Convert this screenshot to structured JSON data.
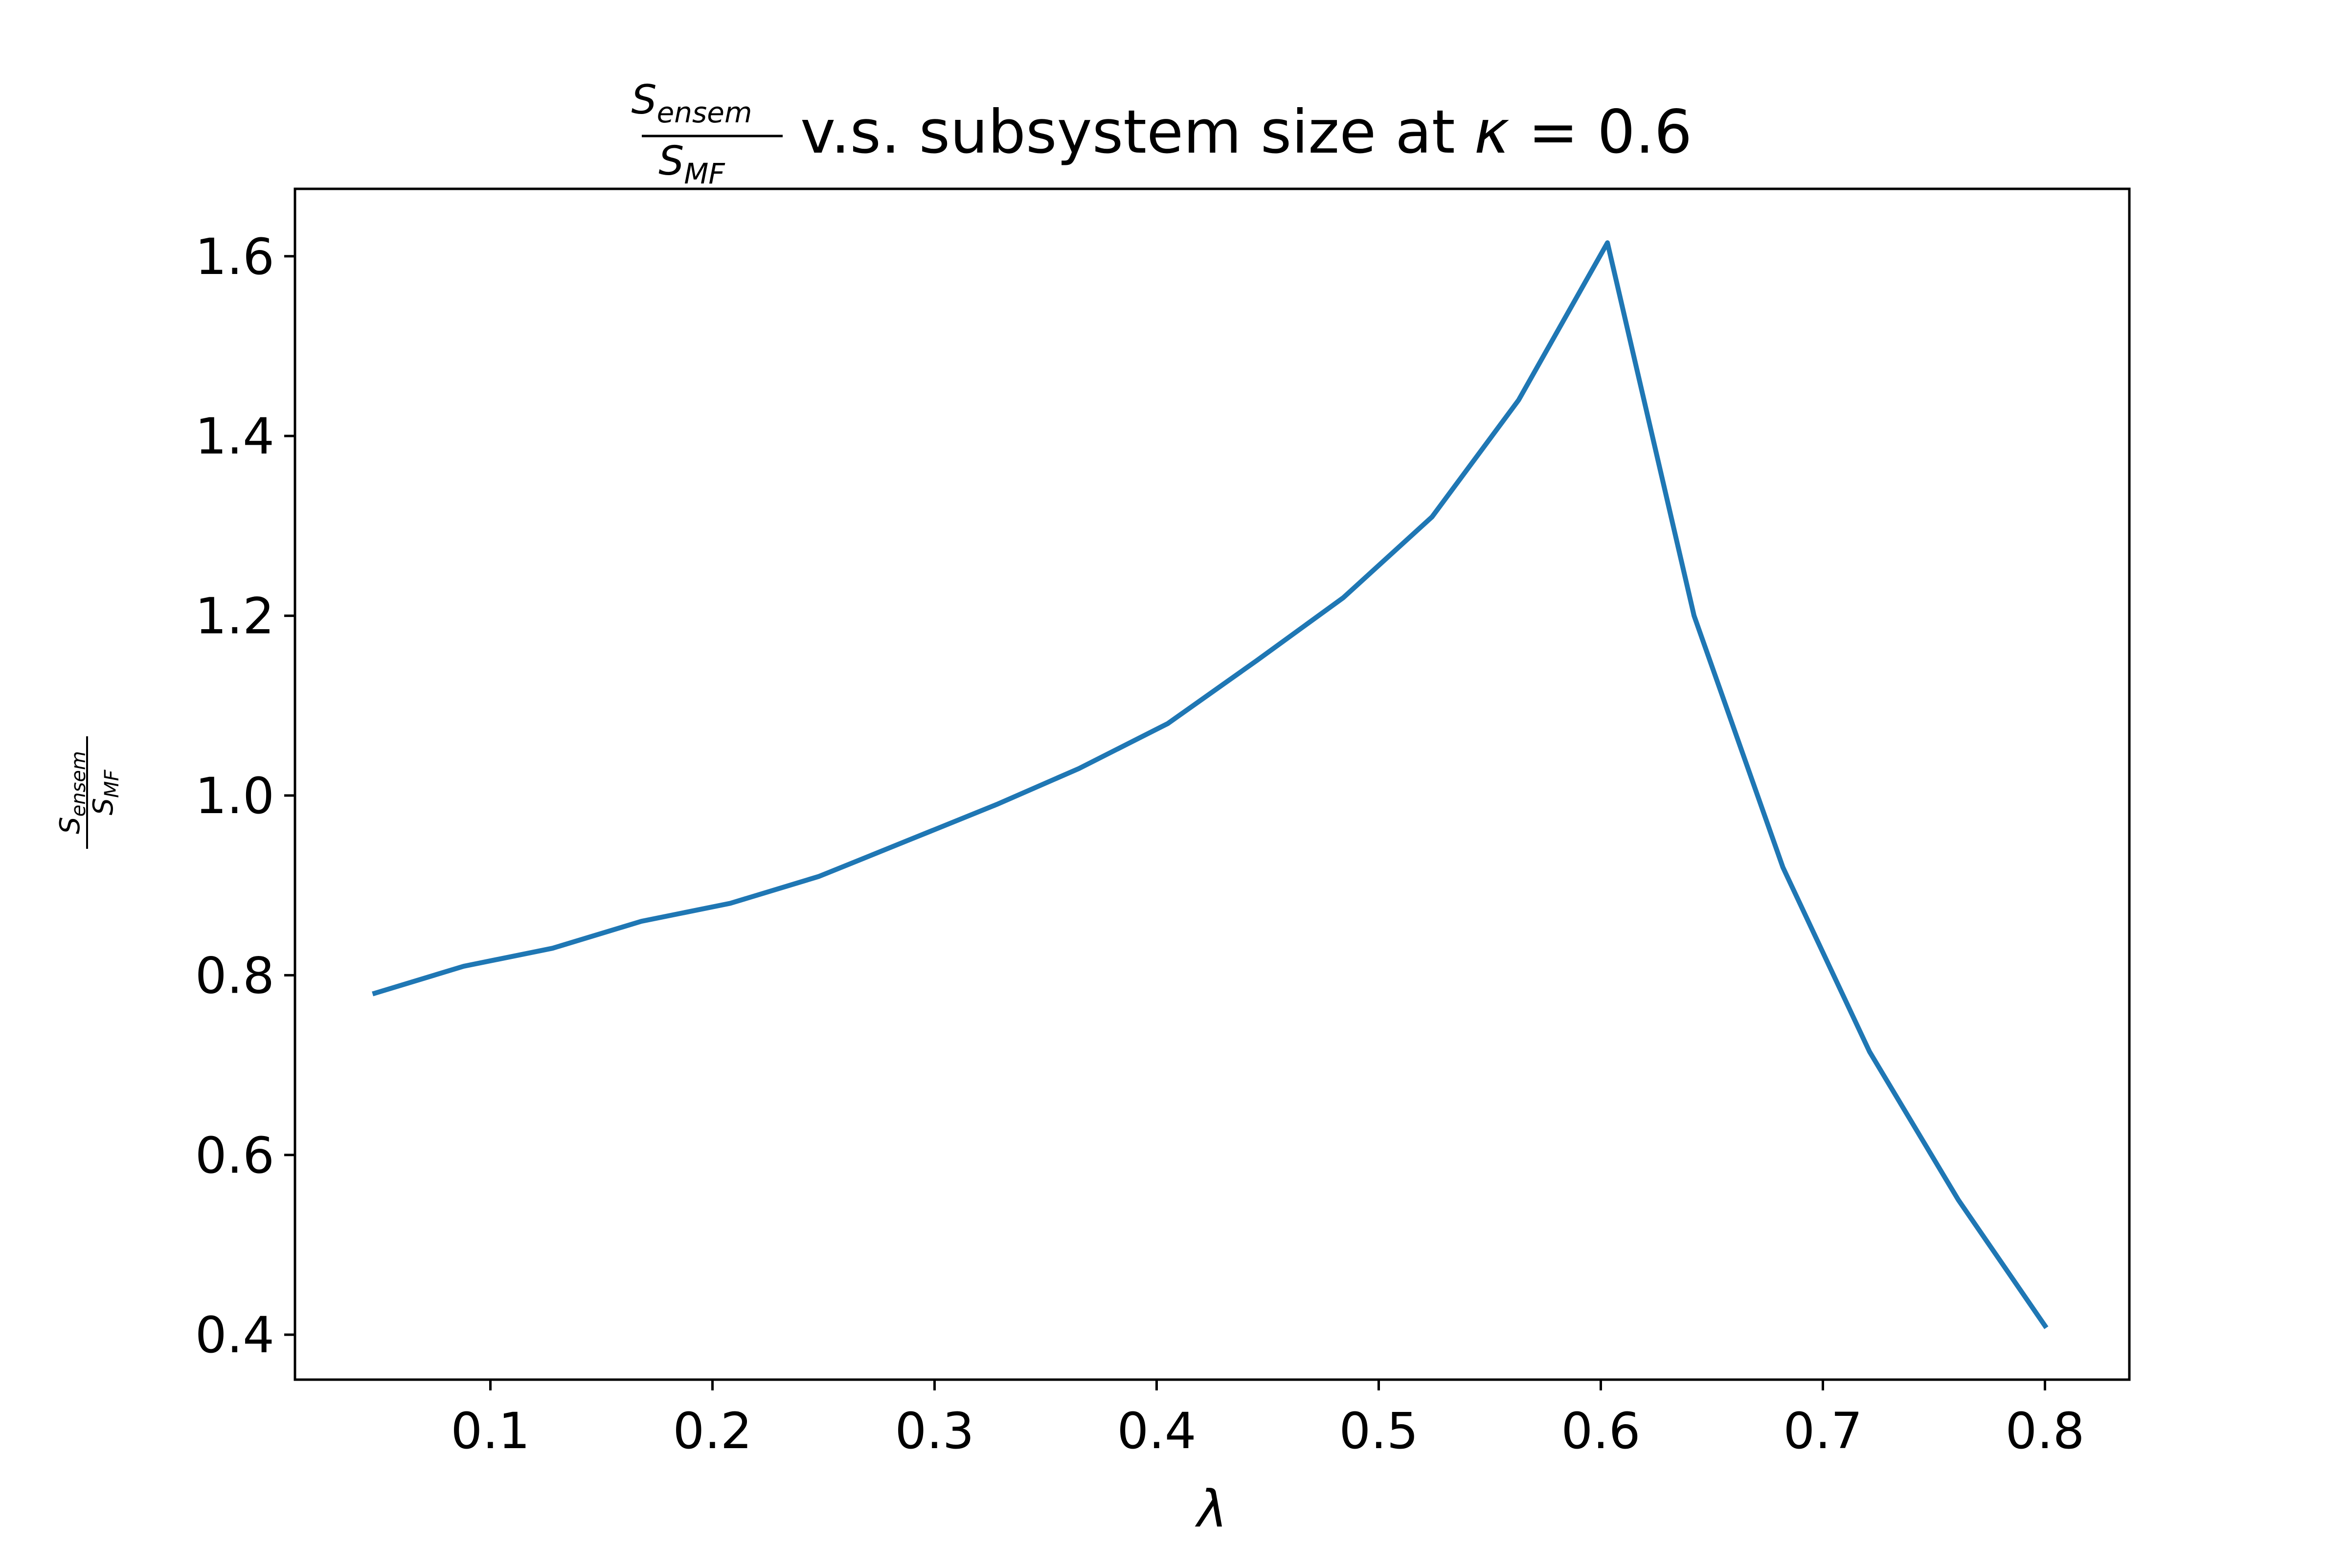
{
  "chart_data": {
    "type": "line",
    "title": {
      "num_base": "S",
      "num_sub": "ensem",
      "den_base": "S",
      "den_sub": "MF",
      "text": " v.s. subsystem size at ",
      "var": "κ",
      "eq": " = 0.6"
    },
    "xlabel": "λ",
    "ylabel": {
      "num_base": "S",
      "num_sub": "ensem",
      "den_base": "S",
      "den_sub": "MF"
    },
    "xlim": [
      0.012,
      0.838
    ],
    "ylim": [
      0.35,
      1.675
    ],
    "xticks": [
      0.1,
      0.2,
      0.3,
      0.4,
      0.5,
      0.6,
      0.7,
      0.8
    ],
    "xtick_labels": [
      "0.1",
      "0.2",
      "0.3",
      "0.4",
      "0.5",
      "0.6",
      "0.7",
      "0.8"
    ],
    "yticks": [
      0.4,
      0.6,
      0.8,
      1.0,
      1.2,
      1.4,
      1.6
    ],
    "ytick_labels": [
      "0.4",
      "0.6",
      "0.8",
      "1.0",
      "1.2",
      "1.4",
      "1.6"
    ],
    "grid": false,
    "series": [
      {
        "color": "#1f77b4",
        "x": [
          0.048,
          0.088,
          0.128,
          0.168,
          0.208,
          0.248,
          0.288,
          0.328,
          0.365,
          0.405,
          0.445,
          0.484,
          0.524,
          0.563,
          0.603,
          0.642,
          0.682,
          0.721,
          0.761,
          0.8
        ],
        "y": [
          0.78,
          0.81,
          0.83,
          0.86,
          0.88,
          0.91,
          0.95,
          0.99,
          1.03,
          1.08,
          1.15,
          1.22,
          1.31,
          1.44,
          1.615,
          1.2,
          0.92,
          0.715,
          0.55,
          0.41
        ]
      }
    ]
  }
}
